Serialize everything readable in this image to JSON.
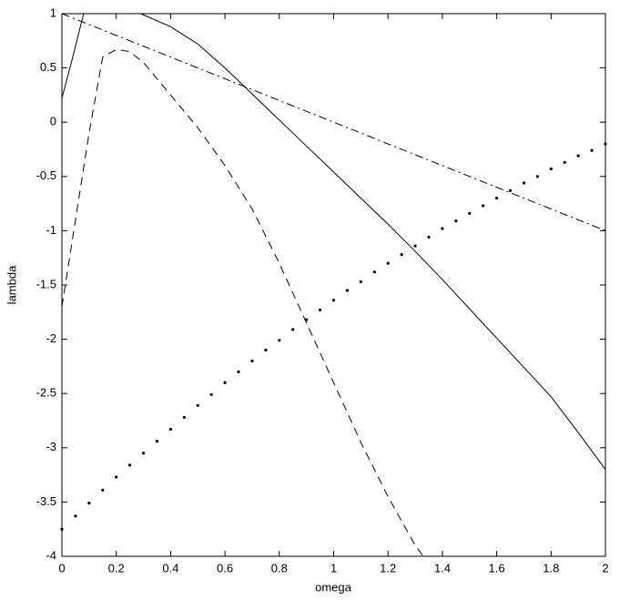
{
  "chart_data": {
    "type": "line",
    "xlabel": "omega",
    "ylabel": "lambda",
    "xlim": [
      0,
      2
    ],
    "ylim": [
      -4,
      1
    ],
    "xticks": [
      0,
      0.2,
      0.4,
      0.6,
      0.8,
      1,
      1.2,
      1.4,
      1.6,
      1.8,
      2
    ],
    "yticks": [
      1,
      0.5,
      0,
      -0.5,
      -1,
      -1.5,
      -2,
      -2.5,
      -3,
      -3.5,
      -4
    ],
    "grid": false,
    "series": [
      {
        "color": "#000000",
        "style": "solid",
        "x": [
          0,
          0.04,
          0.08,
          0.2,
          0.29,
          0.4,
          0.5,
          0.6,
          0.7,
          0.8,
          0.9,
          1.0,
          1.1,
          1.2,
          1.3,
          1.4,
          1.5,
          1.6,
          1.7,
          1.8,
          1.9,
          2.0
        ],
        "values": [
          0.22,
          0.6,
          1.0,
          null,
          1.0,
          0.88,
          0.72,
          0.5,
          0.26,
          0.02,
          -0.22,
          -0.46,
          -0.7,
          -0.94,
          -1.19,
          -1.45,
          -1.72,
          -1.99,
          -2.26,
          -2.53,
          -2.86,
          -3.2
        ]
      },
      {
        "color": "#000000",
        "style": "dashed",
        "x": [
          0,
          0.05,
          0.1,
          0.15,
          0.2,
          0.25,
          0.3,
          0.4,
          0.5,
          0.6,
          0.7,
          0.8,
          0.9,
          1.0,
          1.1,
          1.2,
          1.3,
          1.33
        ],
        "values": [
          -1.7,
          -0.9,
          -0.1,
          0.6,
          0.67,
          0.65,
          0.55,
          0.25,
          -0.05,
          -0.4,
          -0.8,
          -1.3,
          -1.85,
          -2.4,
          -2.95,
          -3.45,
          -3.9,
          -4.0
        ]
      },
      {
        "color": "#000000",
        "style": "dashdot",
        "x": [
          0,
          0.5,
          1,
          1.5,
          2
        ],
        "values": [
          1,
          0.5,
          0,
          -0.5,
          -1
        ]
      },
      {
        "color": "#000000",
        "style": "dotted",
        "x": [
          0,
          0.05,
          0.1,
          0.15,
          0.2,
          0.25,
          0.3,
          0.35,
          0.4,
          0.45,
          0.5,
          0.55,
          0.6,
          0.65,
          0.7,
          0.75,
          0.8,
          0.85,
          0.9,
          0.95,
          1.0,
          1.05,
          1.1,
          1.15,
          1.2,
          1.25,
          1.3,
          1.35,
          1.4,
          1.45,
          1.5,
          1.55,
          1.6,
          1.65,
          1.7,
          1.75,
          1.8,
          1.85,
          1.9,
          1.95,
          2.0
        ],
        "values": [
          -3.75,
          -3.63,
          -3.51,
          -3.39,
          -3.27,
          -3.16,
          -3.05,
          -2.94,
          -2.83,
          -2.72,
          -2.61,
          -2.51,
          -2.4,
          -2.3,
          -2.2,
          -2.1,
          -2.01,
          -1.91,
          -1.82,
          -1.73,
          -1.64,
          -1.55,
          -1.47,
          -1.38,
          -1.3,
          -1.22,
          -1.14,
          -1.06,
          -0.98,
          -0.91,
          -0.84,
          -0.77,
          -0.7,
          -0.63,
          -0.56,
          -0.5,
          -0.43,
          -0.37,
          -0.31,
          -0.26,
          -0.2
        ]
      }
    ]
  }
}
